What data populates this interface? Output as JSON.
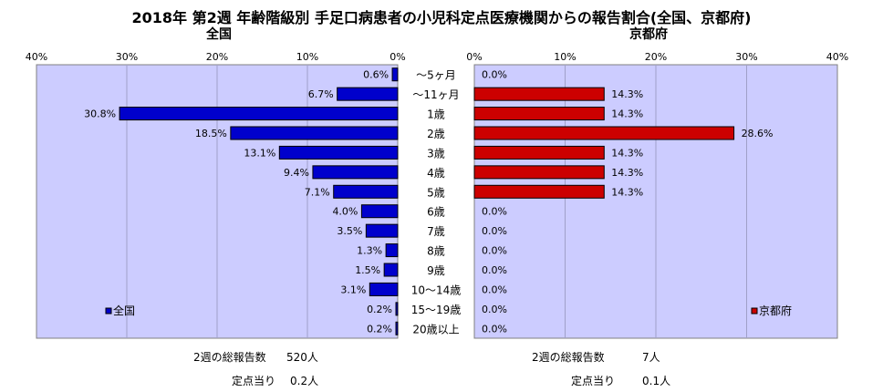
{
  "title": "2018年 第2週 年齢階級別 手足口病患者の小児科定点医療機関からの報告割合(全国、京都府)",
  "left_panel_title": "全国",
  "right_panel_title": "京都府",
  "colors": {
    "nation": "#0000CC",
    "kyoto": "#CC0000",
    "plot_bg": "#CCCCFF"
  },
  "chart_data": [
    {
      "type": "bar",
      "title": "全国",
      "orientation": "horizontal-reversed",
      "categories": [
        "～5ヶ月",
        "～11ヶ月",
        "1歳",
        "2歳",
        "3歳",
        "4歳",
        "5歳",
        "6歳",
        "7歳",
        "8歳",
        "9歳",
        "10～14歳",
        "15～19歳",
        "20歳以上"
      ],
      "series": [
        {
          "name": "全国",
          "values": [
            0.6,
            6.7,
            30.8,
            18.5,
            13.1,
            9.4,
            7.1,
            4.0,
            3.5,
            1.3,
            1.5,
            3.1,
            0.2,
            0.2
          ]
        }
      ],
      "data_labels": [
        "0.6%",
        "6.7%",
        "30.8%",
        "18.5%",
        "13.1%",
        "9.4%",
        "7.1%",
        "4.0%",
        "3.5%",
        "1.3%",
        "1.5%",
        "3.1%",
        "0.2%",
        "0.2%"
      ],
      "xlim": [
        0,
        40
      ],
      "x_ticks": [
        "0%",
        "10%",
        "20%",
        "30%",
        "40%"
      ],
      "grid": true,
      "legend": "bottom-left"
    },
    {
      "type": "bar",
      "title": "京都府",
      "orientation": "horizontal",
      "categories": [
        "～5ヶ月",
        "～11ヶ月",
        "1歳",
        "2歳",
        "3歳",
        "4歳",
        "5歳",
        "6歳",
        "7歳",
        "8歳",
        "9歳",
        "10～14歳",
        "15～19歳",
        "20歳以上"
      ],
      "series": [
        {
          "name": "京都府",
          "values": [
            0,
            14.3,
            14.3,
            28.6,
            14.3,
            14.3,
            14.3,
            0,
            0,
            0,
            0,
            0,
            0,
            0
          ]
        }
      ],
      "data_labels": [
        "0.0%",
        "14.3%",
        "14.3%",
        "28.6%",
        "14.3%",
        "14.3%",
        "14.3%",
        "0.0%",
        "0.0%",
        "0.0%",
        "0.0%",
        "0.0%",
        "0.0%",
        "0.0%"
      ],
      "xlim": [
        0,
        40
      ],
      "x_ticks": [
        "0%",
        "10%",
        "20%",
        "30%",
        "40%"
      ],
      "grid": true,
      "legend": "bottom-right"
    }
  ],
  "footer": {
    "nation_total_label": "2週の総報告数",
    "nation_total_value": "520人",
    "nation_per_label": "定点当り",
    "nation_per_value": "0.2人",
    "kyoto_total_label": "2週の総報告数",
    "kyoto_total_value": "7人",
    "kyoto_per_label": "定点当り",
    "kyoto_per_value": "0.1人"
  }
}
